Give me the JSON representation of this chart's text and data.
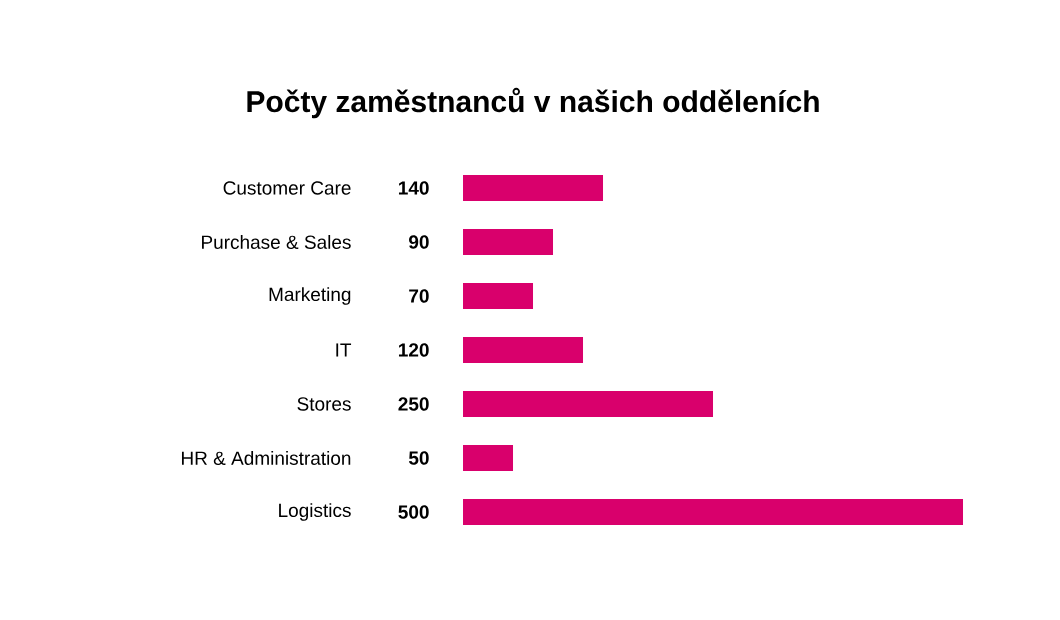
{
  "chart_data": {
    "type": "bar",
    "orientation": "horizontal",
    "title": "Počty zaměstnanců v našich odděleních",
    "categories": [
      "Customer Care",
      "Purchase & Sales",
      "Marketing",
      "IT",
      "Stores",
      "HR & Administration",
      "Logistics"
    ],
    "values": [
      140,
      90,
      70,
      120,
      250,
      50,
      500
    ],
    "color": "#d9006c",
    "data_labels": true
  }
}
